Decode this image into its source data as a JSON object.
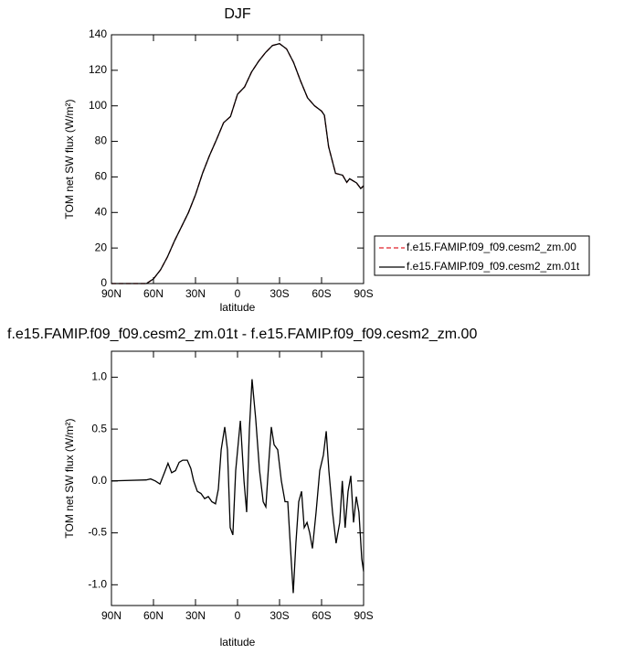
{
  "chart_data": [
    {
      "type": "line",
      "title": "DJF",
      "xlabel": "latitude",
      "ylabel": "TOM net SW flux (W/m²)",
      "x": [
        90,
        65,
        60,
        55,
        50,
        45,
        40,
        35,
        30,
        25,
        20,
        15,
        10,
        5,
        0,
        -5,
        -10,
        -15,
        -20,
        -25,
        -30,
        -35,
        -40,
        -45,
        -50,
        -55,
        -60,
        -62,
        -65,
        -70,
        -75,
        -78,
        -80,
        -85,
        -88,
        -90
      ],
      "series": [
        {
          "name": "f.e15.FAMIP.f09_f09.cesm2_zm.00",
          "color": "#e0202a",
          "dash": true,
          "values": [
            0,
            0,
            2.6,
            7.7,
            15,
            24,
            32,
            40,
            50,
            62,
            72,
            81,
            90.5,
            94,
            106.5,
            110.6,
            119,
            125,
            130,
            134,
            135,
            132,
            124.5,
            114,
            104.5,
            100,
            97,
            94.7,
            77,
            62,
            61,
            57,
            59,
            56.6,
            53.5,
            55
          ]
        },
        {
          "name": "f.e15.FAMIP.f09_f09.cesm2_zm.01t",
          "color": "#000000",
          "dash": false,
          "values": [
            0,
            0,
            2.6,
            7.7,
            15,
            24,
            32,
            40,
            50,
            62,
            72,
            81,
            90.5,
            94,
            106.5,
            110.6,
            119,
            125,
            130,
            134,
            135,
            132,
            124.5,
            114,
            104.5,
            100,
            97,
            94.7,
            77,
            62,
            61,
            57,
            59,
            56.6,
            53.5,
            55
          ]
        }
      ],
      "xlim": [
        90,
        -90
      ],
      "xticks": [
        {
          "value": 90,
          "label": "90N"
        },
        {
          "value": 60,
          "label": "60N"
        },
        {
          "value": 30,
          "label": "30N"
        },
        0,
        {
          "value": -30,
          "label": "30S"
        },
        {
          "value": -60,
          "label": "60S"
        },
        {
          "value": -90,
          "label": "90S"
        }
      ],
      "ylim": [
        0,
        140
      ],
      "yticks": [
        0,
        20,
        40,
        60,
        80,
        100,
        120,
        140
      ],
      "legend": "right"
    },
    {
      "type": "line",
      "title": "f.e15.FAMIP.f09_f09.cesm2_zm.01t - f.e15.FAMIP.f09_f09.cesm2_zm.00",
      "xlabel": "latitude",
      "ylabel": "TOM net SW flux (W/m²)",
      "x": [
        90,
        65.2,
        62,
        58.7,
        55.4,
        52.2,
        49.6,
        47,
        44.3,
        41.7,
        39.1,
        35.9,
        33.3,
        31.3,
        28.7,
        26.1,
        23.5,
        20.9,
        18.3,
        15.7,
        13.7,
        11.7,
        9.1,
        7.2,
        5.2,
        3.3,
        1.3,
        -2,
        -4.6,
        -6.5,
        -8.5,
        -10.4,
        -13,
        -15.7,
        -18.3,
        -20.2,
        -22.2,
        -24.1,
        -26.1,
        -28.7,
        -31.3,
        -33.9,
        -35.9,
        -37.8,
        -39.8,
        -41.7,
        -43.7,
        -45.7,
        -47.6,
        -49.6,
        -51.5,
        -53.5,
        -56.1,
        -58.7,
        -61.3,
        -63.3,
        -65.2,
        -67.8,
        -70.4,
        -73,
        -74.8,
        -76.8,
        -78.9,
        -80.9,
        -82.8,
        -84.8,
        -86.7,
        -88.7,
        -90
      ],
      "series": [
        {
          "color": "#000000",
          "dash": false,
          "values": [
            0,
            0.01,
            0.02,
            0,
            -0.03,
            0.08,
            0.17,
            0.08,
            0.1,
            0.18,
            0.2,
            0.2,
            0.12,
            0,
            -0.1,
            -0.12,
            -0.17,
            -0.15,
            -0.2,
            -0.22,
            -0.08,
            0.3,
            0.52,
            0.3,
            -0.45,
            -0.52,
            0.1,
            0.58,
            0,
            -0.3,
            0.5,
            0.98,
            0.6,
            0.1,
            -0.2,
            -0.25,
            0.15,
            0.52,
            0.35,
            0.3,
            0,
            -0.2,
            -0.2,
            -0.65,
            -1.08,
            -0.6,
            -0.2,
            -0.1,
            -0.45,
            -0.4,
            -0.5,
            -0.65,
            -0.3,
            0.1,
            0.25,
            0.48,
            0.1,
            -0.3,
            -0.6,
            -0.4,
            0,
            -0.45,
            -0.1,
            0.05,
            -0.4,
            -0.15,
            -0.3,
            -0.75,
            -0.87
          ]
        }
      ],
      "xlim": [
        90,
        -90
      ],
      "xticks": [
        {
          "value": 90,
          "label": "90N"
        },
        {
          "value": 60,
          "label": "60N"
        },
        {
          "value": 30,
          "label": "30N"
        },
        0,
        {
          "value": -30,
          "label": "30S"
        },
        {
          "value": -60,
          "label": "60S"
        },
        {
          "value": -90,
          "label": "90S"
        }
      ],
      "ylim": [
        -1.2,
        1.25
      ],
      "yticks": [
        {
          "value": -1,
          "label": "-1.0"
        },
        {
          "value": -0.5,
          "label": "-0.5"
        },
        {
          "value": 0,
          "label": "0.0"
        },
        {
          "value": 0.5,
          "label": "0.5"
        },
        {
          "value": 1,
          "label": "1.0"
        }
      ]
    }
  ]
}
